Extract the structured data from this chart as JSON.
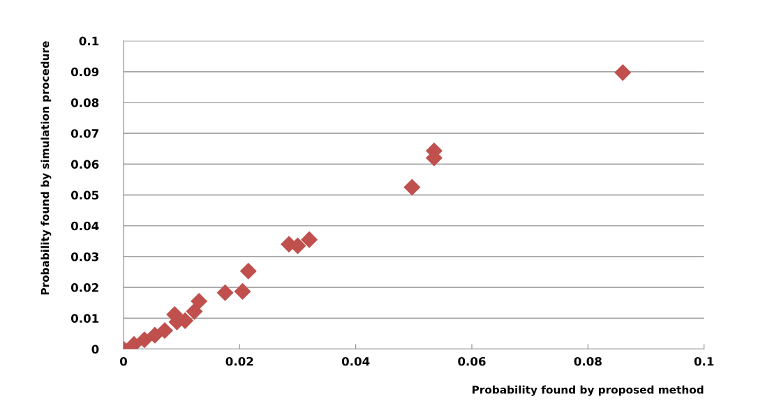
{
  "chart_data": {
    "type": "scatter",
    "xlabel": "Probability found by proposed method",
    "ylabel": "Probability found by simulation procedure",
    "marker": "diamond",
    "grid": "y",
    "xlim": [
      0,
      0.1
    ],
    "xticks": [
      0,
      0.02,
      0.04,
      0.06,
      0.08,
      0.1
    ],
    "ylim": [
      0,
      0.1
    ],
    "yticks": [
      0,
      0.01,
      0.02,
      0.03,
      0.04,
      0.05,
      0.06,
      0.07,
      0.08,
      0.09,
      0.1
    ],
    "series": [
      {
        "color": "#c0504d",
        "x": [
          0,
          0.0018,
          0.0036,
          0.0054,
          0.0071,
          0.0088,
          0.0092,
          0.0106,
          0.0122,
          0.013,
          0.0175,
          0.0205,
          0.0215,
          0.0285,
          0.03,
          0.032,
          0.0497,
          0.0535,
          0.0535,
          0.086
        ],
        "values": [
          0,
          0.0015,
          0.003,
          0.0045,
          0.006,
          0.0112,
          0.0088,
          0.0092,
          0.0122,
          0.0155,
          0.0183,
          0.0187,
          0.0253,
          0.034,
          0.0335,
          0.0355,
          0.0525,
          0.0643,
          0.062,
          0.0897
        ]
      }
    ]
  }
}
